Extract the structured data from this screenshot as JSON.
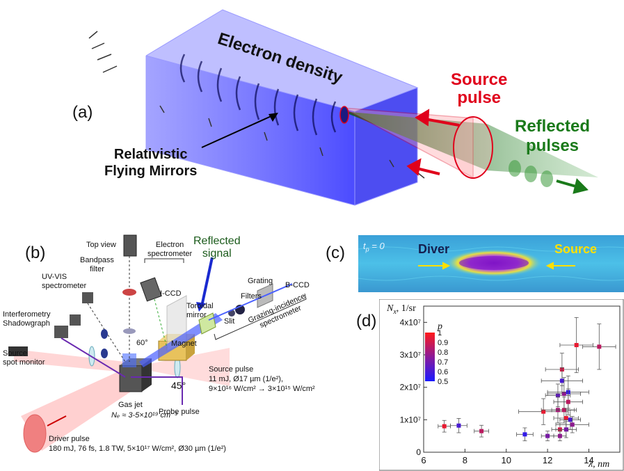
{
  "panel_a": {
    "label": "(a)",
    "electron_density": "Electron density",
    "source_pulse": [
      "Source",
      "pulse"
    ],
    "reflected_pulses": [
      "Reflected",
      "pulses"
    ],
    "mirrors": [
      "Relativistic",
      "Flying Mirrors"
    ],
    "colors": {
      "density": "#3b3bff",
      "source": "#e0001b",
      "reflected": "#1a7a1a"
    }
  },
  "panel_b": {
    "label": "(b)",
    "reflected_signal": [
      "Reflected",
      "signal"
    ],
    "top_view": "Top view",
    "bandpass_filter": [
      "Bandpass",
      "filter"
    ],
    "electron_spectrometer": [
      "Electron",
      "spectrometer"
    ],
    "grating": "Grating",
    "bccd": "B-CCD",
    "uvvis": [
      "UV-VIS",
      "spectrometer"
    ],
    "iccd": "I-CCD",
    "toroidal": [
      "Toroidal",
      "mirror"
    ],
    "filters": "Filters",
    "slit": "Slit",
    "gis": [
      "Grazing-incidence",
      "spectrometer"
    ],
    "interferometry": [
      "Interferometry",
      "Shadowgraph"
    ],
    "angle60": "60°",
    "magnet": "Magnet",
    "source_spot": [
      "Source",
      "spot monitor"
    ],
    "angle45": "45°",
    "source_pulse": [
      "Source pulse",
      "11 mJ, Ø17 µm (1/e²),",
      "9×10¹⁶ W/cm² → 3×10¹⁵ W/cm²"
    ],
    "gas_jet": "Gas jet",
    "ne": "Nₑ ≈ 3-5×10¹⁹ cm⁻³",
    "probe_pulse": "Probe pulse",
    "driver_pulse": [
      "Driver pulse",
      "180 mJ, 76 fs, 1.8 TW, 5×10¹⁷ W/cm², Ø30 µm (1/e²)"
    ]
  },
  "panel_c": {
    "label": "(c)",
    "time": "t",
    "time_sub": "p",
    "time_val": " = 0",
    "diver": "Diver",
    "source": "Source"
  },
  "panel_d": {
    "label": "(d)"
  },
  "chart_data": {
    "type": "scatter",
    "ylabel": "N",
    "ylabel_sub": "x",
    "ylabel_unit": ", 1/sr",
    "xlabel": "λ, nm",
    "xlim": [
      6,
      15.5
    ],
    "ylim": [
      0,
      45000000.0
    ],
    "xticks": [
      "6",
      "8",
      "10",
      "12",
      "14"
    ],
    "yticks": [
      "0",
      "1x10⁷",
      "2x10⁷",
      "3x10⁷",
      "4x10⁷"
    ],
    "colorbar": {
      "label": "p",
      "ticks": [
        "1",
        "0.9",
        "0.8",
        "0.7",
        "0.6",
        "0.5"
      ],
      "range": [
        0.5,
        1
      ]
    },
    "points": [
      {
        "x": 7.0,
        "y": 8000000.0,
        "p": 0.95,
        "xe": 0.3,
        "ye": 1800000.0
      },
      {
        "x": 7.7,
        "y": 8200000.0,
        "p": 0.6,
        "xe": 0.4,
        "ye": 2200000.0
      },
      {
        "x": 8.8,
        "y": 6500000.0,
        "p": 0.85,
        "xe": 0.35,
        "ye": 1800000.0
      },
      {
        "x": 10.9,
        "y": 5500000.0,
        "p": 0.55,
        "xe": 0.4,
        "ye": 2000000.0
      },
      {
        "x": 11.8,
        "y": 12500000.0,
        "p": 0.95,
        "xe": 1.2,
        "ye": 4000000.0
      },
      {
        "x": 12.0,
        "y": 5000000.0,
        "p": 0.7,
        "xe": 0.3,
        "ye": 1500000.0
      },
      {
        "x": 12.5,
        "y": 17500000.0,
        "p": 0.65,
        "xe": 0.6,
        "ye": 3500000.0
      },
      {
        "x": 12.5,
        "y": 13000000.0,
        "p": 0.8,
        "xe": 0.8,
        "ye": 4000000.0
      },
      {
        "x": 12.6,
        "y": 7000000.0,
        "p": 0.9,
        "xe": 0.4,
        "ye": 2000000.0
      },
      {
        "x": 12.6,
        "y": 5000000.0,
        "p": 0.75,
        "xe": 0.3,
        "ye": 1500000.0
      },
      {
        "x": 12.7,
        "y": 25500000.0,
        "p": 0.9,
        "xe": 0.8,
        "ye": 5000000.0
      },
      {
        "x": 12.7,
        "y": 22000000.0,
        "p": 0.6,
        "xe": 1.0,
        "ye": 4000000.0
      },
      {
        "x": 12.8,
        "y": 18000000.0,
        "p": 0.75,
        "xe": 0.8,
        "ye": 5000000.0
      },
      {
        "x": 12.8,
        "y": 13000000.0,
        "p": 0.85,
        "xe": 0.6,
        "ye": 4000000.0
      },
      {
        "x": 12.9,
        "y": 10500000.0,
        "p": 0.95,
        "xe": 0.6,
        "ye": 3000000.0
      },
      {
        "x": 12.9,
        "y": 7000000.0,
        "p": 0.7,
        "xe": 0.5,
        "ye": 2500000.0
      },
      {
        "x": 13.0,
        "y": 18500000.0,
        "p": 0.55,
        "xe": 1.0,
        "ye": 5000000.0
      },
      {
        "x": 13.0,
        "y": 15500000.0,
        "p": 0.85,
        "xe": 0.7,
        "ye": 4000000.0
      },
      {
        "x": 13.1,
        "y": 10000000.0,
        "p": 0.6,
        "xe": 0.5,
        "ye": 3000000.0
      },
      {
        "x": 13.2,
        "y": 8500000.0,
        "p": 0.75,
        "xe": 0.8,
        "ye": 2500000.0
      },
      {
        "x": 13.4,
        "y": 33000000.0,
        "p": 0.95,
        "xe": 0.8,
        "ye": 8500000.0
      },
      {
        "x": 14.5,
        "y": 32500000.0,
        "p": 0.85,
        "xe": 0.8,
        "ye": 7000000.0
      }
    ]
  }
}
